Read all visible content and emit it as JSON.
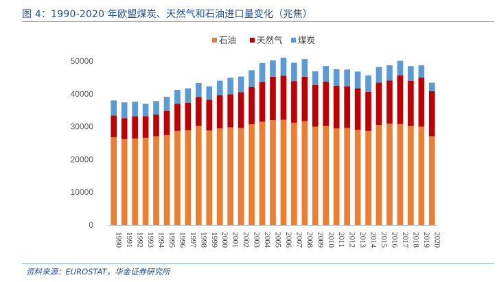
{
  "header": {
    "title": "图 4：1990-2020 年欧盟煤炭、天然气和石油进口量变化（兆焦）"
  },
  "footer": {
    "source": "资料来源：EUROSTAT，华金证券研究所"
  },
  "chart_data": {
    "type": "bar",
    "stacked": true,
    "title": "图 4：1990-2020 年欧盟煤炭、天然气和石油进口量变化（兆焦）",
    "xlabel": "",
    "ylabel": "",
    "ylim": [
      0,
      50000
    ],
    "yticks": [
      0,
      10000,
      20000,
      30000,
      40000,
      50000
    ],
    "legend_position": "top",
    "categories": [
      "1990",
      "1991",
      "1992",
      "1993",
      "1994",
      "1995",
      "1996",
      "1997",
      "1998",
      "1999",
      "2000",
      "2001",
      "2002",
      "2003",
      "2004",
      "2005",
      "2006",
      "2007",
      "2008",
      "2009",
      "2010",
      "2011",
      "2012",
      "2013",
      "2014",
      "2015",
      "2016",
      "2017",
      "2018",
      "2019",
      "2020"
    ],
    "series": [
      {
        "name": "石油",
        "color": "#ed7d31",
        "values": [
          26800,
          26200,
          26400,
          26600,
          27100,
          27400,
          28700,
          28900,
          30200,
          28800,
          29500,
          29800,
          29600,
          30700,
          31500,
          32000,
          32100,
          31200,
          31700,
          30000,
          30200,
          29500,
          29600,
          29000,
          28700,
          30500,
          30900,
          30800,
          30200,
          30000,
          27100
        ]
      },
      {
        "name": "天然气",
        "color": "#c00000",
        "values": [
          6600,
          6400,
          6800,
          6600,
          6600,
          7400,
          8300,
          8400,
          8800,
          9400,
          10100,
          10100,
          10900,
          11400,
          12100,
          13200,
          13400,
          12700,
          13500,
          12700,
          13500,
          13000,
          12700,
          12700,
          11900,
          12900,
          13200,
          14800,
          13800,
          15000,
          13700
        ]
      },
      {
        "name": "煤炭",
        "color": "#5b9bd5",
        "values": [
          4600,
          4800,
          4400,
          3800,
          4100,
          4300,
          4200,
          4400,
          4300,
          4100,
          4400,
          5000,
          4800,
          5100,
          5800,
          5000,
          5500,
          5600,
          5400,
          4200,
          4800,
          5000,
          5100,
          5100,
          5000,
          4800,
          4600,
          4500,
          4500,
          3700,
          2600
        ]
      }
    ]
  }
}
